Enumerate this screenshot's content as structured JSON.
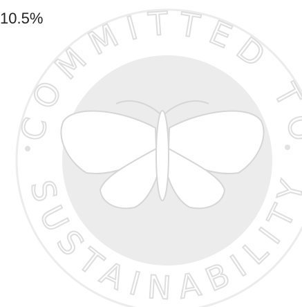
{
  "metric": {
    "value_text": "10.5%"
  },
  "badge": {
    "top_text": "COMMITTED TO",
    "bottom_text": "SUSTAINABILITY"
  }
}
